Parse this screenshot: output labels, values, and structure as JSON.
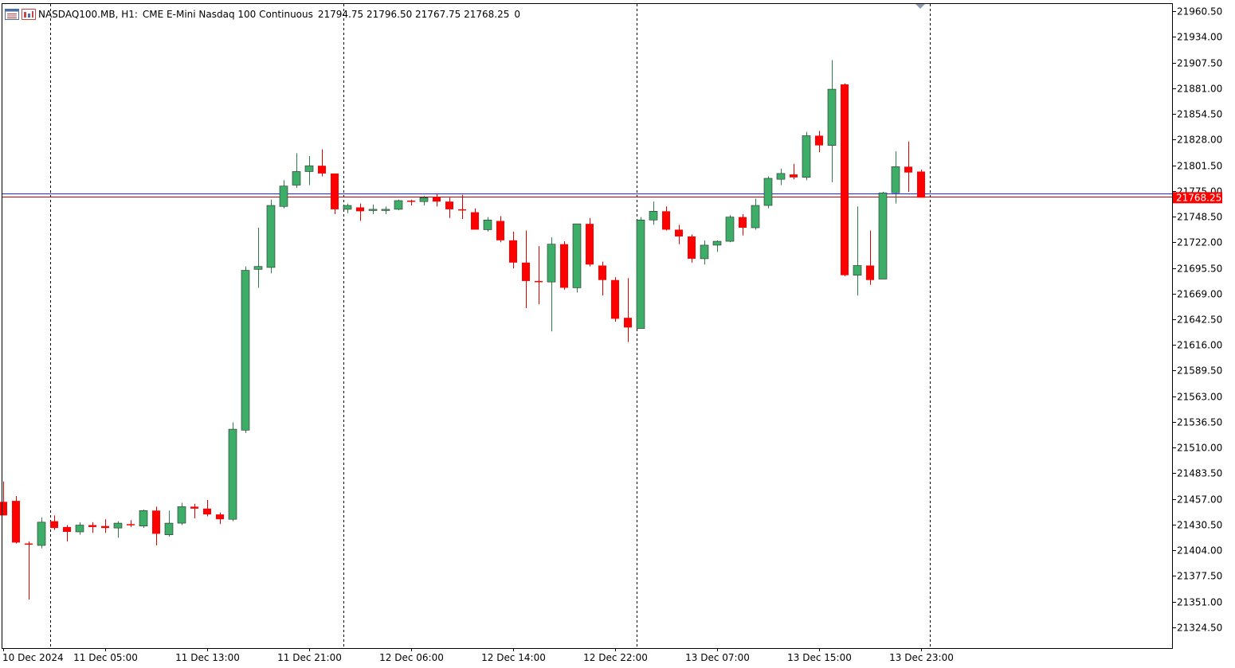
{
  "header": {
    "symbol": "NASDAQ100.MB, H1:",
    "description": "CME E-Mini Nasdaq 100 Continuous",
    "ohlc": "21794.75 21796.50 21767.75 21768.25",
    "volume": "0",
    "icons": [
      "indicator-list-icon",
      "chart-window-icon"
    ]
  },
  "current_price_label": "21768.25",
  "colors": {
    "bull": "#3cae68",
    "bear": "#ff0000",
    "line_blue": "#2222ff",
    "line_red": "#cc0000"
  },
  "chart_data": {
    "type": "candlestick",
    "title": "",
    "symbol": "NASDAQ100.MB",
    "timeframe": "H1",
    "ylim": [
      21303,
      21968
    ],
    "y_ticks": [
      "21960.50",
      "21934.00",
      "21907.50",
      "21881.00",
      "21854.50",
      "21828.00",
      "21801.50",
      "21775.00",
      "21748.50",
      "21722.00",
      "21695.50",
      "21669.00",
      "21642.50",
      "21616.00",
      "21589.50",
      "21563.00",
      "21536.50",
      "21510.00",
      "21483.50",
      "21457.00",
      "21430.50",
      "21404.00",
      "21377.50",
      "21351.00",
      "21324.50"
    ],
    "x_labels": [
      {
        "i": 0,
        "label": "10 Dec 2024"
      },
      {
        "i": 8,
        "label": "11 Dec 05:00"
      },
      {
        "i": 16,
        "label": "11 Dec 13:00"
      },
      {
        "i": 24,
        "label": "11 Dec 21:00"
      },
      {
        "i": 32,
        "label": "12 Dec 06:00"
      },
      {
        "i": 40,
        "label": "12 Dec 14:00"
      },
      {
        "i": 48,
        "label": "12 Dec 22:00"
      },
      {
        "i": 56,
        "label": "13 Dec 07:00"
      },
      {
        "i": 64,
        "label": "13 Dec 15:00"
      },
      {
        "i": 72,
        "label": "13 Dec 23:00"
      }
    ],
    "period_separators": [
      3.7,
      26.7,
      49.7,
      72.7
    ],
    "horizontal_lines": [
      21772,
      21769
    ],
    "candles": [
      {
        "o": 21454,
        "h": 21475,
        "l": 21440,
        "c": 21440
      },
      {
        "o": 21455,
        "h": 21460,
        "l": 21411,
        "c": 21412
      },
      {
        "o": 21411,
        "h": 21413,
        "l": 21353,
        "c": 21410
      },
      {
        "o": 21409,
        "h": 21438,
        "l": 21406,
        "c": 21433
      },
      {
        "o": 21434,
        "h": 21440,
        "l": 21425,
        "c": 21427
      },
      {
        "o": 21428,
        "h": 21430,
        "l": 21413,
        "c": 21423
      },
      {
        "o": 21423,
        "h": 21433,
        "l": 21420,
        "c": 21430
      },
      {
        "o": 21430,
        "h": 21433,
        "l": 21422,
        "c": 21428
      },
      {
        "o": 21429,
        "h": 21436,
        "l": 21422,
        "c": 21427
      },
      {
        "o": 21427,
        "h": 21434,
        "l": 21417,
        "c": 21432
      },
      {
        "o": 21431,
        "h": 21435,
        "l": 21428,
        "c": 21430
      },
      {
        "o": 21429,
        "h": 21446,
        "l": 21427,
        "c": 21445
      },
      {
        "o": 21445,
        "h": 21449,
        "l": 21409,
        "c": 21421
      },
      {
        "o": 21420,
        "h": 21445,
        "l": 21418,
        "c": 21432
      },
      {
        "o": 21432,
        "h": 21453,
        "l": 21430,
        "c": 21449
      },
      {
        "o": 21449,
        "h": 21452,
        "l": 21437,
        "c": 21447
      },
      {
        "o": 21447,
        "h": 21456,
        "l": 21439,
        "c": 21441
      },
      {
        "o": 21441,
        "h": 21443,
        "l": 21431,
        "c": 21436
      },
      {
        "o": 21436,
        "h": 21536,
        "l": 21434,
        "c": 21529
      },
      {
        "o": 21528,
        "h": 21697,
        "l": 21525,
        "c": 21693
      },
      {
        "o": 21694,
        "h": 21737,
        "l": 21675,
        "c": 21697
      },
      {
        "o": 21696,
        "h": 21766,
        "l": 21690,
        "c": 21760
      },
      {
        "o": 21759,
        "h": 21786,
        "l": 21757,
        "c": 21780
      },
      {
        "o": 21781,
        "h": 21814,
        "l": 21778,
        "c": 21795
      },
      {
        "o": 21795,
        "h": 21811,
        "l": 21781,
        "c": 21801
      },
      {
        "o": 21801,
        "h": 21818,
        "l": 21790,
        "c": 21793
      },
      {
        "o": 21793,
        "h": 21793,
        "l": 21751,
        "c": 21756
      },
      {
        "o": 21756,
        "h": 21762,
        "l": 21752,
        "c": 21760
      },
      {
        "o": 21758,
        "h": 21762,
        "l": 21744,
        "c": 21754
      },
      {
        "o": 21755,
        "h": 21761,
        "l": 21751,
        "c": 21756
      },
      {
        "o": 21756,
        "h": 21759,
        "l": 21751,
        "c": 21756
      },
      {
        "o": 21756,
        "h": 21766,
        "l": 21755,
        "c": 21765
      },
      {
        "o": 21765,
        "h": 21766,
        "l": 21760,
        "c": 21764
      },
      {
        "o": 21764,
        "h": 21770,
        "l": 21760,
        "c": 21768
      },
      {
        "o": 21769,
        "h": 21772,
        "l": 21759,
        "c": 21764
      },
      {
        "o": 21764,
        "h": 21768,
        "l": 21747,
        "c": 21756
      },
      {
        "o": 21756,
        "h": 21771,
        "l": 21746,
        "c": 21755
      },
      {
        "o": 21753,
        "h": 21757,
        "l": 21737,
        "c": 21735
      },
      {
        "o": 21735,
        "h": 21748,
        "l": 21733,
        "c": 21745
      },
      {
        "o": 21744,
        "h": 21749,
        "l": 21722,
        "c": 21724
      },
      {
        "o": 21724,
        "h": 21733,
        "l": 21695,
        "c": 21701
      },
      {
        "o": 21701,
        "h": 21734,
        "l": 21654,
        "c": 21682
      },
      {
        "o": 21682,
        "h": 21718,
        "l": 21658,
        "c": 21681
      },
      {
        "o": 21681,
        "h": 21727,
        "l": 21630,
        "c": 21720
      },
      {
        "o": 21720,
        "h": 21723,
        "l": 21673,
        "c": 21675
      },
      {
        "o": 21675,
        "h": 21741,
        "l": 21670,
        "c": 21741
      },
      {
        "o": 21741,
        "h": 21747,
        "l": 21697,
        "c": 21699
      },
      {
        "o": 21698,
        "h": 21702,
        "l": 21667,
        "c": 21683
      },
      {
        "o": 21683,
        "h": 21686,
        "l": 21640,
        "c": 21643
      },
      {
        "o": 21644,
        "h": 21685,
        "l": 21619,
        "c": 21634
      },
      {
        "o": 21633,
        "h": 21748,
        "l": 21634,
        "c": 21745
      },
      {
        "o": 21745,
        "h": 21764,
        "l": 21740,
        "c": 21754
      },
      {
        "o": 21754,
        "h": 21759,
        "l": 21734,
        "c": 21735
      },
      {
        "o": 21735,
        "h": 21740,
        "l": 21720,
        "c": 21728
      },
      {
        "o": 21728,
        "h": 21730,
        "l": 21701,
        "c": 21705
      },
      {
        "o": 21705,
        "h": 21724,
        "l": 21699,
        "c": 21719
      },
      {
        "o": 21719,
        "h": 21724,
        "l": 21712,
        "c": 21723
      },
      {
        "o": 21723,
        "h": 21750,
        "l": 21722,
        "c": 21748
      },
      {
        "o": 21748,
        "h": 21751,
        "l": 21729,
        "c": 21737
      },
      {
        "o": 21737,
        "h": 21767,
        "l": 21735,
        "c": 21760
      },
      {
        "o": 21760,
        "h": 21790,
        "l": 21757,
        "c": 21788
      },
      {
        "o": 21787,
        "h": 21798,
        "l": 21781,
        "c": 21793
      },
      {
        "o": 21792,
        "h": 21803,
        "l": 21787,
        "c": 21789
      },
      {
        "o": 21789,
        "h": 21836,
        "l": 21786,
        "c": 21832
      },
      {
        "o": 21832,
        "h": 21837,
        "l": 21815,
        "c": 21822
      },
      {
        "o": 21822,
        "h": 21910,
        "l": 21784,
        "c": 21880
      },
      {
        "o": 21885,
        "h": 21886,
        "l": 21687,
        "c": 21688
      },
      {
        "o": 21688,
        "h": 21759,
        "l": 21667,
        "c": 21698
      },
      {
        "o": 21698,
        "h": 21734,
        "l": 21678,
        "c": 21683
      },
      {
        "o": 21684,
        "h": 21774,
        "l": 21684,
        "c": 21773
      },
      {
        "o": 21773,
        "h": 21816,
        "l": 21762,
        "c": 21800
      },
      {
        "o": 21800,
        "h": 21826,
        "l": 21774,
        "c": 21794
      },
      {
        "o": 21795,
        "h": 21797,
        "l": 21768,
        "c": 21768
      }
    ]
  }
}
